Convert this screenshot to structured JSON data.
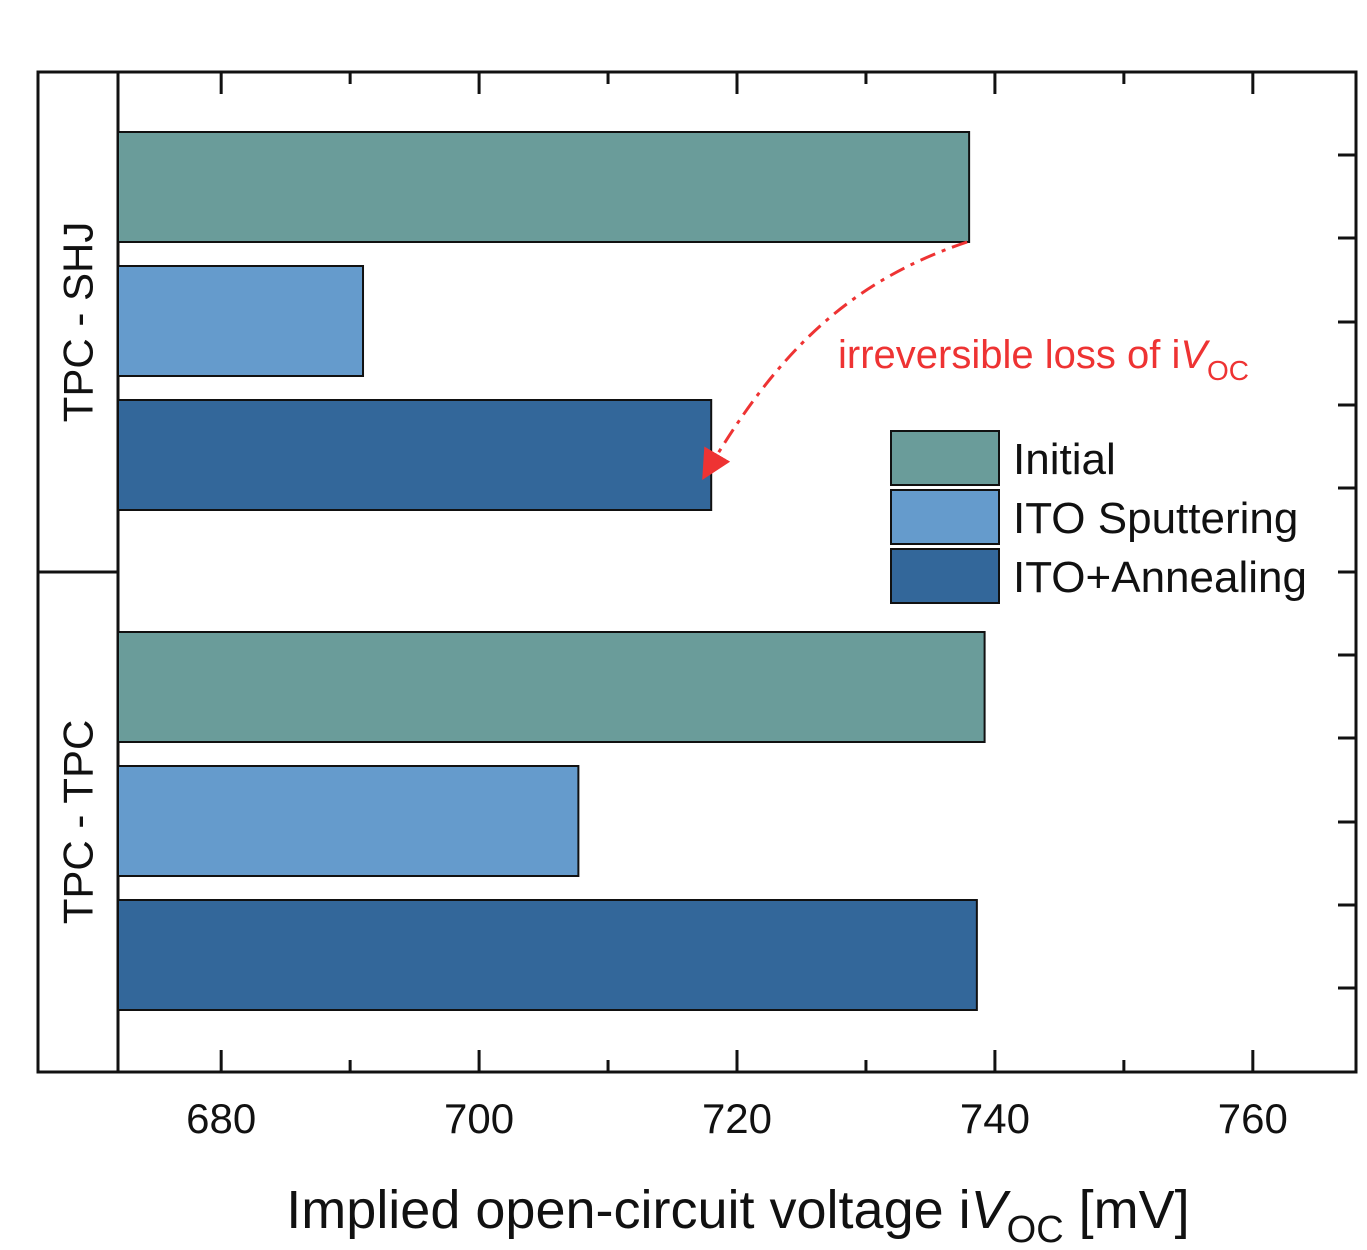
{
  "chart_data": {
    "type": "bar",
    "orientation": "horizontal",
    "xlabel_parts": {
      "main": "Implied open-circuit voltage i",
      "var": "V",
      "sub": "OC",
      "unit": " [mV]"
    },
    "xlim": [
      672,
      768
    ],
    "xticks": [
      680,
      700,
      720,
      740,
      760
    ],
    "grid": false,
    "groups": [
      {
        "label": "TPC - SHJ",
        "values": [
          738,
          691,
          718
        ]
      },
      {
        "label": "TPC - TPC",
        "values": [
          739.2,
          707.7,
          738.6
        ]
      }
    ],
    "series": [
      {
        "name": "Initial",
        "color": "#6a9c9a"
      },
      {
        "name": "ITO Sputtering",
        "color": "#659bcc"
      },
      {
        "name": "ITO+Annealing",
        "color": "#33679a"
      }
    ],
    "legend_position": "right",
    "annotation": {
      "text_main": "irreversible loss of i",
      "var": "V",
      "sub": "OC",
      "color": "#ee3333",
      "from": {
        "group": 0,
        "series": 0
      },
      "to": {
        "group": 0,
        "series": 2
      }
    }
  }
}
